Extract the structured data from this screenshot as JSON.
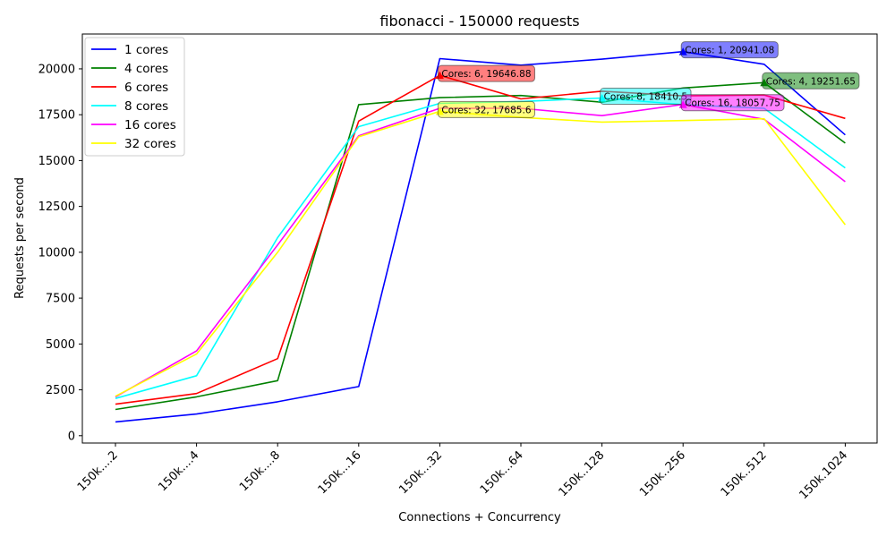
{
  "chart_data": {
    "type": "line",
    "title": "fibonacci - 150000 requests",
    "xlabel": "Connections + Concurrency",
    "ylabel": "Requests per second",
    "categories": [
      "150k....2",
      "150k....4",
      "150k....8",
      "150k...16",
      "150k...32",
      "150k...64",
      "150k..128",
      "150k..256",
      "150k..512",
      "150k.1024"
    ],
    "ylim": [
      -400,
      21900
    ],
    "yticks": [
      0,
      2500,
      5000,
      7500,
      10000,
      12500,
      15000,
      17500,
      20000
    ],
    "legend_position": "upper-left",
    "grid": false,
    "series": [
      {
        "name": "1 cores",
        "color": "#0000ff",
        "values": [
          750,
          1180,
          1850,
          2680,
          20560,
          20200,
          20530,
          20941.08,
          20250,
          16400
        ]
      },
      {
        "name": "4 cores",
        "color": "#008000",
        "values": [
          1430,
          2120,
          3000,
          18050,
          18430,
          18550,
          18180,
          18960,
          19251.65,
          15950
        ]
      },
      {
        "name": "6 cores",
        "color": "#ff0000",
        "values": [
          1720,
          2300,
          4200,
          17150,
          19646.88,
          18360,
          18780,
          18530,
          18570,
          17300
        ]
      },
      {
        "name": "8 cores",
        "color": "#00ffff",
        "values": [
          2030,
          3270,
          10800,
          16850,
          18120,
          18220,
          18410.5,
          18050,
          17850,
          14600
        ]
      },
      {
        "name": "16 cores",
        "color": "#ff00ff",
        "values": [
          2120,
          4620,
          10400,
          16350,
          17850,
          17850,
          17450,
          18057.75,
          17250,
          13850
        ]
      },
      {
        "name": "32 cores",
        "color": "#ffff00",
        "values": [
          2150,
          4450,
          10000,
          16300,
          17685.6,
          17350,
          17100,
          17180,
          17280,
          11500
        ]
      }
    ],
    "annotations": [
      {
        "series": "1 cores",
        "text": "Cores: 1, 20941.08",
        "x_index": 7,
        "y": 20941.08,
        "color": "#0000ff"
      },
      {
        "series": "4 cores",
        "text": "Cores: 4, 19251.65",
        "x_index": 8,
        "y": 19251.65,
        "color": "#008000"
      },
      {
        "series": "6 cores",
        "text": "Cores: 6, 19646.88",
        "x_index": 4,
        "y": 19646.88,
        "color": "#ff0000"
      },
      {
        "series": "8 cores",
        "text": "Cores: 8, 18410.5",
        "x_index": 6,
        "y": 18410.5,
        "color": "#00ffff"
      },
      {
        "series": "16 cores",
        "text": "Cores: 16, 18057.75",
        "x_index": 7,
        "y": 18057.75,
        "color": "#ff00ff"
      },
      {
        "series": "32 cores",
        "text": "Cores: 32, 17685.6",
        "x_index": 4,
        "y": 17685.6,
        "color": "#ffff00"
      }
    ]
  }
}
